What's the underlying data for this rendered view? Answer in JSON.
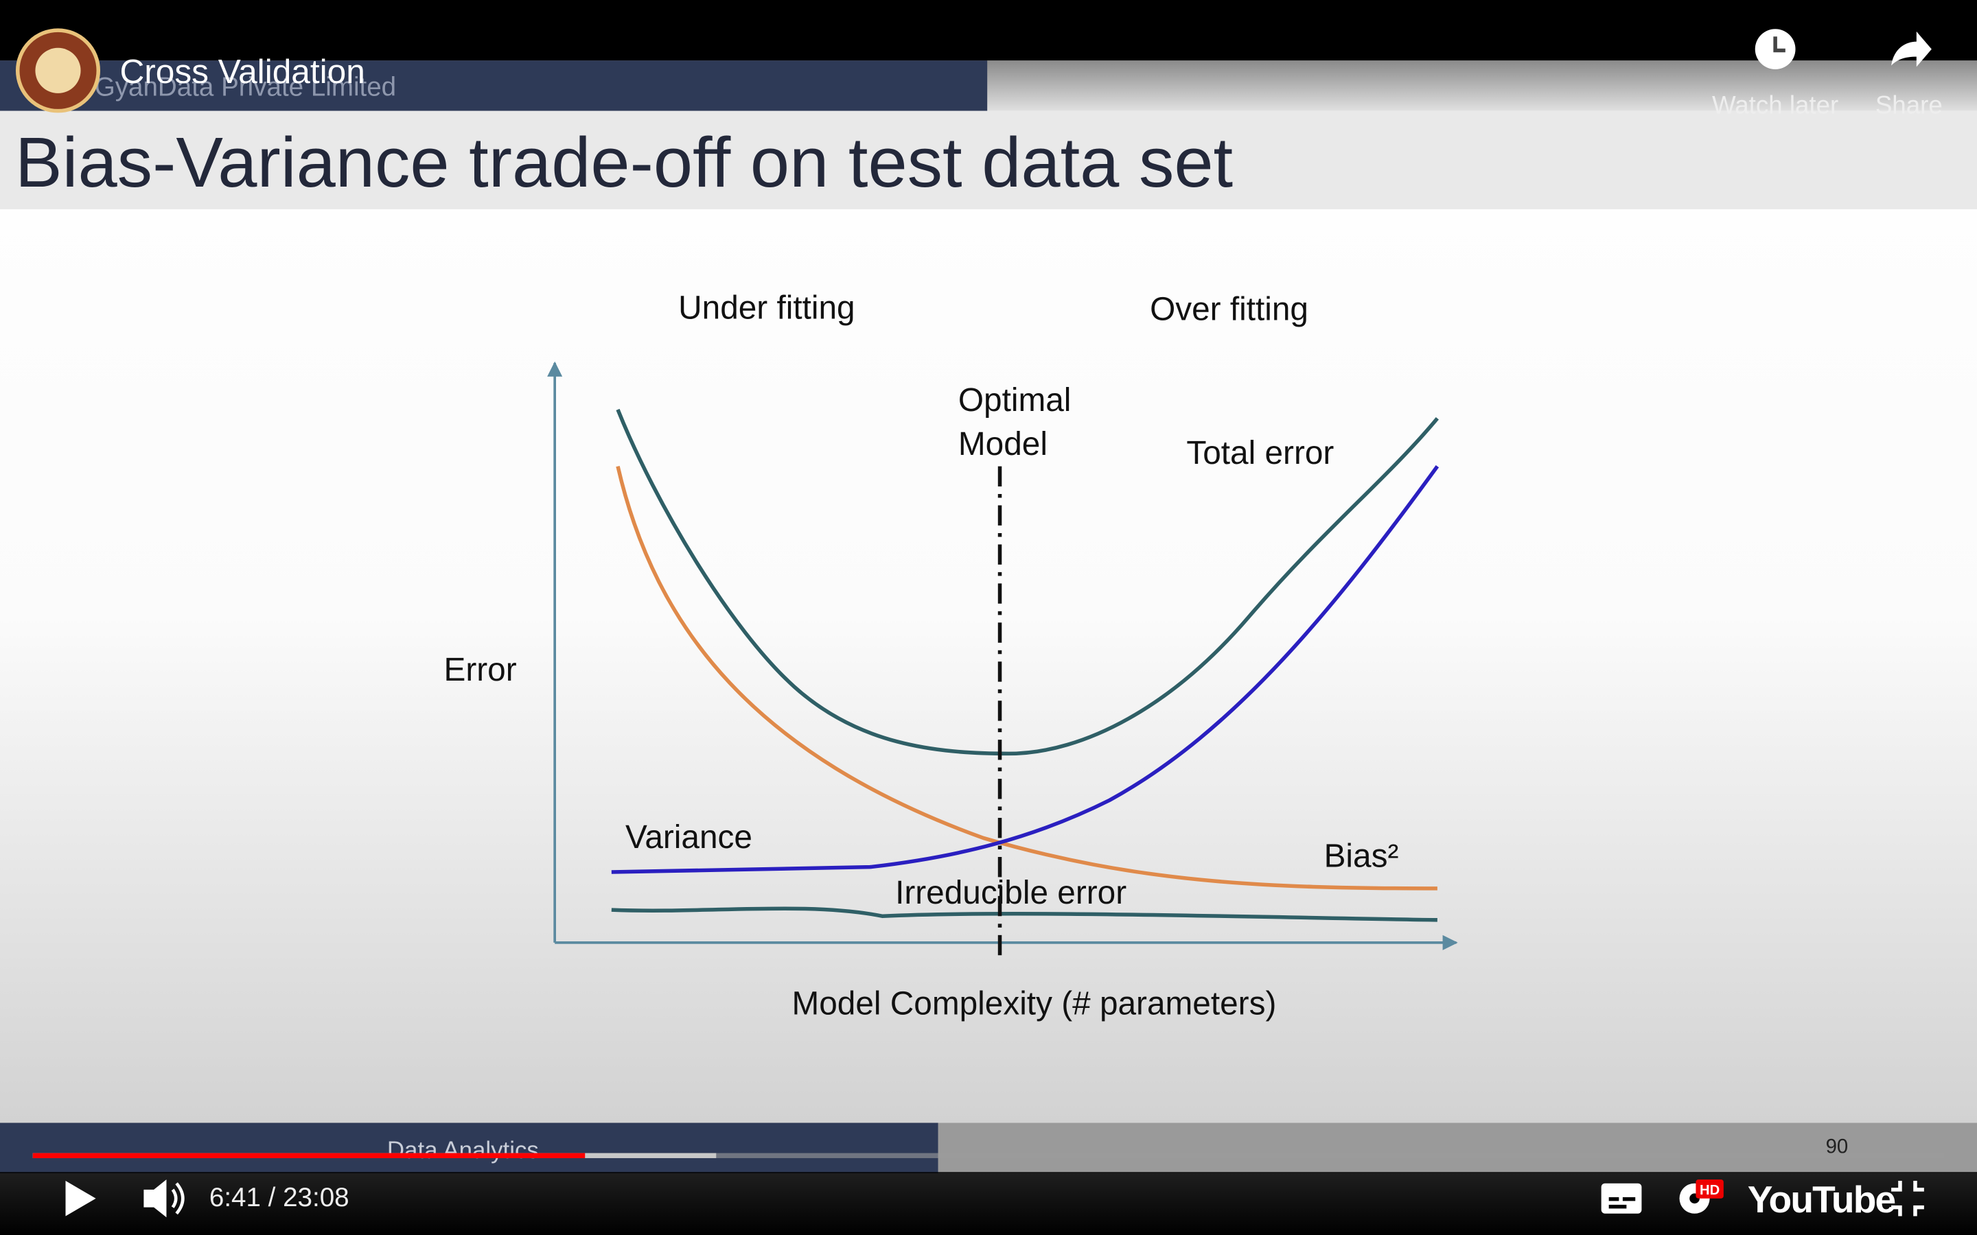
{
  "video": {
    "title": "Cross Validation",
    "watermark": "GyanData Private Limited",
    "watch_later": "Watch later",
    "share": "Share",
    "time": "6:41 / 23:08",
    "hd_badge": "HD",
    "brand": "YouTube"
  },
  "slide": {
    "title": "Bias-Variance trade-off on test data set",
    "footer": "Data Analytics",
    "page_number": "90"
  },
  "diagram": {
    "under_fitting": "Under fitting",
    "over_fitting": "Over fitting",
    "optimal_model": [
      "Optimal",
      "Model"
    ],
    "total_error": "Total error",
    "y_axis": "Error",
    "variance": "Variance",
    "bias": "Bias²",
    "irreducible_error": "Irreducible error",
    "x_axis": "Model Complexity (# parameters)"
  }
}
